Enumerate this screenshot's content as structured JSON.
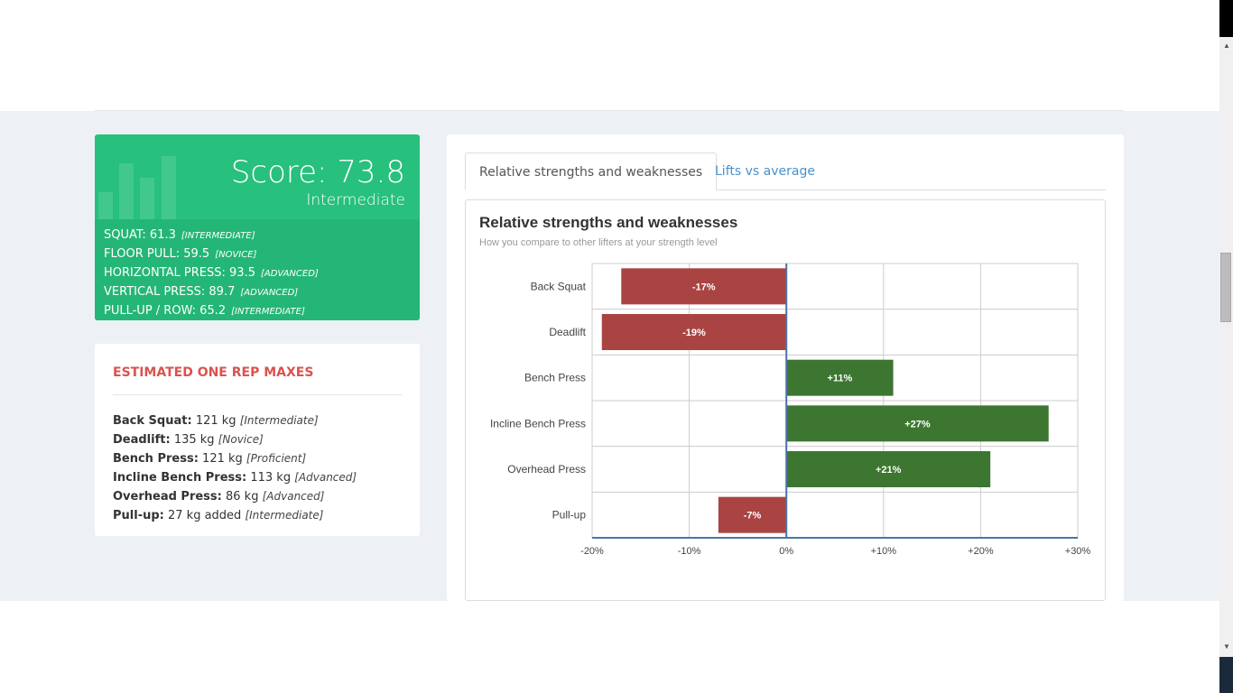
{
  "score_card": {
    "score": "Score: 73.8",
    "level": "Intermediate",
    "rows": [
      {
        "label": "SQUAT: 61.3",
        "tag": "[INTERMEDIATE]"
      },
      {
        "label": "FLOOR PULL: 59.5",
        "tag": "[NOVICE]"
      },
      {
        "label": "HORIZONTAL PRESS: 93.5",
        "tag": "[ADVANCED]"
      },
      {
        "label": "VERTICAL PRESS: 89.7",
        "tag": "[ADVANCED]"
      },
      {
        "label": "PULL-UP / ROW: 65.2",
        "tag": "[INTERMEDIATE]"
      }
    ]
  },
  "orm": {
    "title": "ESTIMATED ONE REP MAXES",
    "items": [
      {
        "name": "Back Squat:",
        "value": "121 kg",
        "tag": "[Intermediate]"
      },
      {
        "name": "Deadlift:",
        "value": "135 kg",
        "tag": "[Novice]"
      },
      {
        "name": "Bench Press:",
        "value": "121 kg",
        "tag": "[Proficient]"
      },
      {
        "name": "Incline Bench Press:",
        "value": "113 kg",
        "tag": "[Advanced]"
      },
      {
        "name": "Overhead Press:",
        "value": "86 kg",
        "tag": "[Advanced]"
      },
      {
        "name": "Pull-up:",
        "value": "27 kg added",
        "tag": "[Intermediate]"
      }
    ]
  },
  "tabs": [
    "Relative strengths and weaknesses",
    "Lifts vs average"
  ],
  "colors": {
    "negative": "#a94442",
    "positive": "#3c7630",
    "axis": "#4a74a8"
  },
  "chart_data": {
    "type": "bar",
    "orientation": "horizontal",
    "title": "Relative strengths and weaknesses",
    "subtitle": "How you compare to other lifters at your strength level",
    "categories": [
      "Back Squat",
      "Deadlift",
      "Bench Press",
      "Incline Bench Press",
      "Overhead Press",
      "Pull-up"
    ],
    "values": [
      -17,
      -19,
      11,
      27,
      21,
      -7
    ],
    "labels": [
      "-17%",
      "-19%",
      "+11%",
      "+27%",
      "+21%",
      "-7%"
    ],
    "xlim": [
      -20,
      30
    ],
    "xticks": [
      -20,
      -10,
      0,
      10,
      20,
      30
    ],
    "xtick_labels": [
      "-20%",
      "-10%",
      "0%",
      "+10%",
      "+20%",
      "+30%"
    ],
    "grid": true
  }
}
